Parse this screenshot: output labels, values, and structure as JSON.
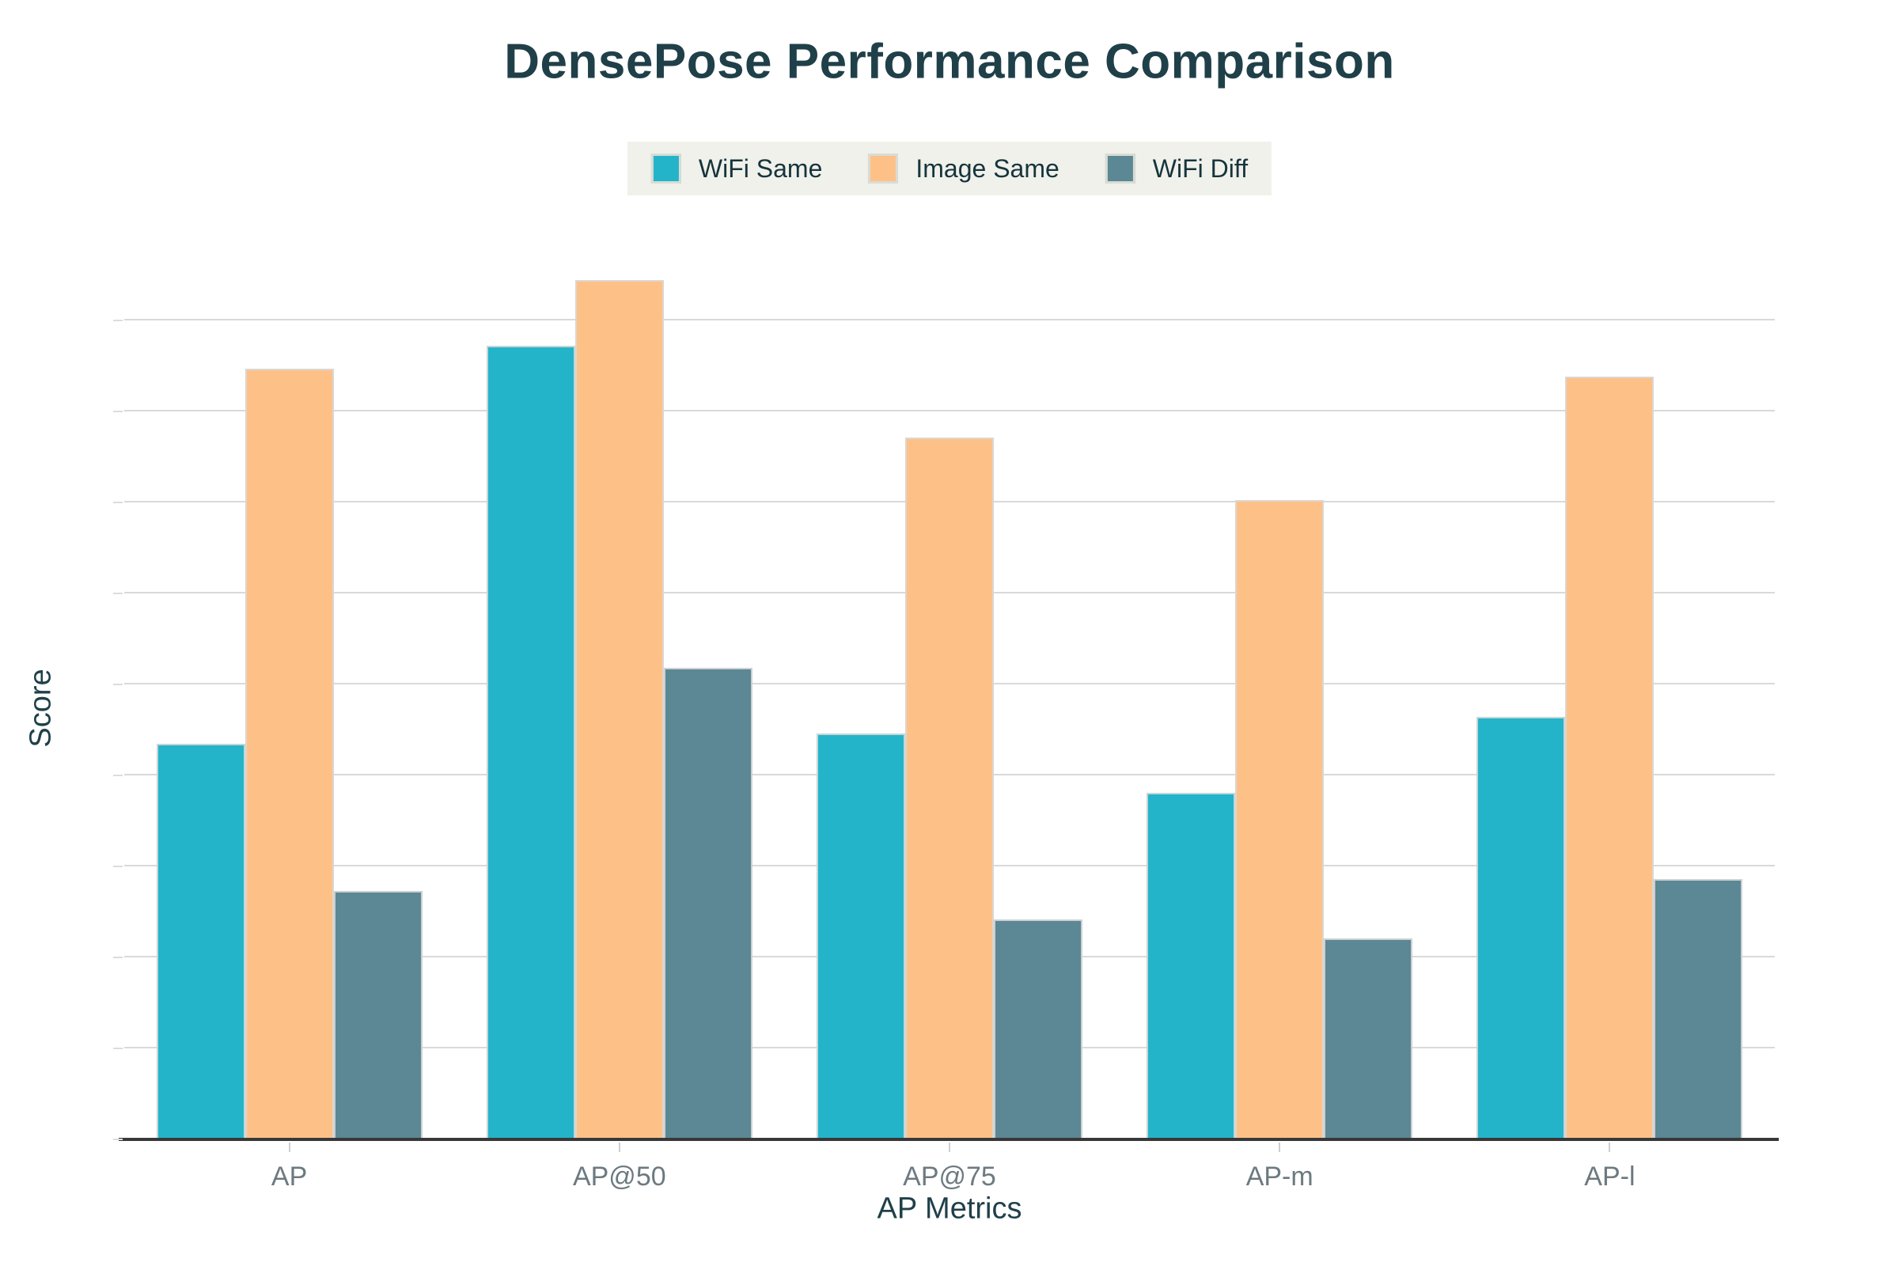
{
  "chart_data": {
    "type": "bar",
    "title": "DensePose Performance Comparison",
    "xlabel": "AP Metrics",
    "ylabel": "Score",
    "categories": [
      "AP",
      "AP@50",
      "AP@75",
      "AP-m",
      "AP-l"
    ],
    "series": [
      {
        "name": "WiFi Same",
        "color": "#23b4c9",
        "values": [
          43.5,
          87.2,
          44.6,
          38.1,
          46.4
        ]
      },
      {
        "name": "Image Same",
        "color": "#fdc188",
        "values": [
          84.7,
          94.4,
          77.1,
          70.3,
          83.8
        ]
      },
      {
        "name": "WiFi Diff",
        "color": "#5c8794",
        "values": [
          27.3,
          51.8,
          24.2,
          22.1,
          28.6
        ]
      }
    ],
    "yticks": [
      0,
      10,
      20,
      30,
      40,
      50,
      60,
      70,
      80,
      90
    ],
    "ylim": [
      0,
      94.8
    ],
    "grid": true,
    "legend_position": "top-center"
  },
  "colors": {
    "legend_background": "#f0f1eb",
    "title_text": "#204049",
    "tick_text": "#6c7a80",
    "gridline": "#d9d9d9",
    "axis_line": "#383838",
    "legend_label_text": "#16343c"
  }
}
